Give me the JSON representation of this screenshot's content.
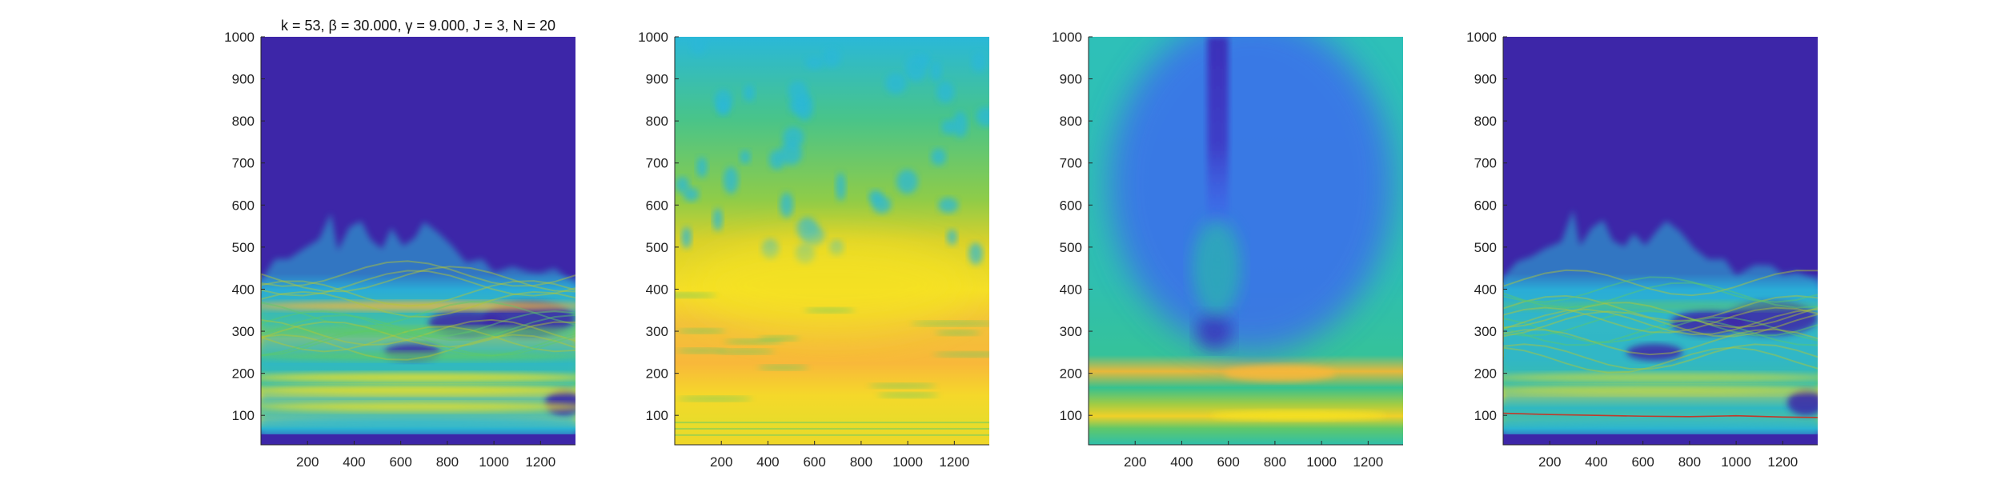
{
  "figure": {
    "colors": {
      "background": "#3d26a8",
      "low": "#3b2fb8",
      "blue": "#3e62f5",
      "cyan": "#2ab8d8",
      "teal": "#25c5a0",
      "green": "#5dc968",
      "yellowgreen": "#b5c831",
      "yellow": "#f5e224",
      "orange": "#f8b83a",
      "ridge": "#c0392b"
    }
  },
  "chart_data": [
    {
      "type": "heatmap",
      "title": "k = 53, β = 30.000, γ = 9.000, J = 3, N = 20",
      "xlim": [
        0,
        1350
      ],
      "ylim": [
        30,
        1000
      ],
      "x_ticks": [
        200,
        400,
        600,
        800,
        1000,
        1200
      ],
      "y_ticks": [
        100,
        200,
        300,
        400,
        500,
        600,
        700,
        800,
        900,
        1000
      ],
      "bands": [
        {
          "y": 360,
          "level": "yellow-orange"
        },
        {
          "y": 300,
          "level": "green"
        },
        {
          "y": 240,
          "level": "green"
        },
        {
          "y": 190,
          "level": "yellow"
        },
        {
          "y": 160,
          "level": "yellow"
        },
        {
          "y": 120,
          "level": "yellow"
        },
        {
          "y": 85,
          "level": "cyan"
        }
      ],
      "colormap": "parula"
    },
    {
      "type": "heatmap",
      "title": "",
      "xlim": [
        0,
        1350
      ],
      "ylim": [
        30,
        1000
      ],
      "x_ticks": [
        200,
        400,
        600,
        800,
        1000,
        1200
      ],
      "y_ticks": [
        100,
        200,
        300,
        400,
        500,
        600,
        700,
        800,
        900,
        1000
      ],
      "bands": [
        {
          "y": 400,
          "level": "yellow"
        },
        {
          "y": 200,
          "level": "orange"
        },
        {
          "y": 150,
          "level": "yellow"
        },
        {
          "y": 80,
          "level": "yellow"
        }
      ],
      "colormap": "parula"
    },
    {
      "type": "heatmap",
      "title": "",
      "xlim": [
        0,
        1350
      ],
      "ylim": [
        30,
        1000
      ],
      "x_ticks": [
        200,
        400,
        600,
        800,
        1000,
        1200
      ],
      "y_ticks": [
        100,
        200,
        300,
        400,
        500,
        600,
        700,
        800,
        900,
        1000
      ],
      "bands": [
        {
          "y": 200,
          "level": "orange"
        },
        {
          "y": 140,
          "level": "green"
        },
        {
          "y": 100,
          "level": "yellow"
        },
        {
          "y": 70,
          "level": "green"
        }
      ],
      "colormap": "parula"
    },
    {
      "type": "heatmap",
      "title": "",
      "xlim": [
        0,
        1350
      ],
      "ylim": [
        30,
        1000
      ],
      "x_ticks": [
        200,
        400,
        600,
        800,
        1000,
        1200
      ],
      "y_ticks": [
        100,
        200,
        300,
        400,
        500,
        600,
        700,
        800,
        900,
        1000
      ],
      "bands": [
        {
          "y": 360,
          "level": "green"
        },
        {
          "y": 190,
          "level": "yellow"
        },
        {
          "y": 160,
          "level": "yellow"
        },
        {
          "y": 85,
          "level": "cyan"
        }
      ],
      "ridge": {
        "x": [
          0,
          200,
          400,
          600,
          800,
          1000,
          1200,
          1350
        ],
        "y": [
          105,
          102,
          100,
          98,
          97,
          99,
          96,
          95
        ]
      },
      "colormap": "parula"
    }
  ]
}
